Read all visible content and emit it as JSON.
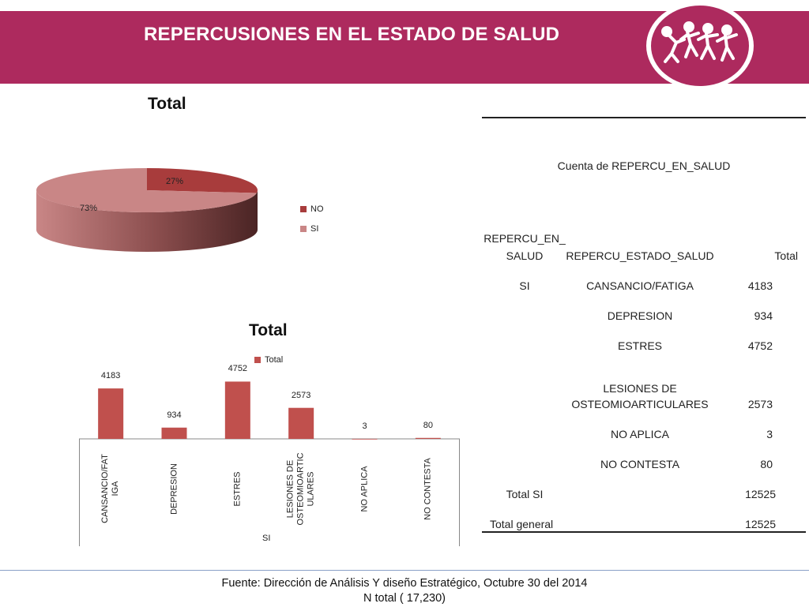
{
  "header": {
    "title": "REPERCUSIONES EN EL ESTADO DE SALUD",
    "banner_color": "#ad2a5e"
  },
  "logo": {
    "icon": "running-people-logo-icon"
  },
  "chart_data": [
    {
      "type": "pie",
      "title": "Total",
      "labels": [
        "NO",
        "SI"
      ],
      "values": [
        27,
        73
      ],
      "value_labels": [
        "27%",
        "73%"
      ],
      "colors": [
        "#a83c3c",
        "#c98686"
      ],
      "legend": "right",
      "three_d": true
    },
    {
      "type": "bar",
      "title": "Total",
      "categories": [
        "CANSANCIO/FATIGA",
        "DEPRESION",
        "ESTRES",
        "LESIONES DE OSTEOMIOARTICULARES",
        "NO APLICA",
        "NO CONTESTA"
      ],
      "category_tick_labels": [
        "CANSANCIO/FAT IGA",
        "DEPRESION",
        "ESTRES",
        "LESIONES DE OSTEOMIOARTIC ULARES",
        "NO APLICA",
        "NO CONTESTA"
      ],
      "group_label": "SI",
      "series": [
        {
          "name": "Total",
          "values": [
            4183,
            934,
            4752,
            2573,
            3,
            80
          ],
          "color": "#c0504d"
        }
      ],
      "data_labels": [
        "4183",
        "934",
        "4752",
        "2573",
        "3",
        "80"
      ],
      "ylim": [
        0,
        5500
      ],
      "legend": "top",
      "grid": false
    }
  ],
  "pivot": {
    "heading": "Cuenta de REPERCU_EN_SALUD",
    "col1_line1": "REPERCU_EN_",
    "col1_line2": "SALUD",
    "col2": "REPERCU_ESTADO_SALUD",
    "col3": "Total",
    "group": "SI",
    "rows": [
      {
        "label": "CANSANCIO/FATIGA",
        "value": "4183"
      },
      {
        "label": "DEPRESION",
        "value": "934"
      },
      {
        "label": "ESTRES",
        "value": "4752"
      },
      {
        "label_line1": "LESIONES DE",
        "label_line2": "OSTEOMIOARTICULARES",
        "value": "2573"
      },
      {
        "label": "NO APLICA",
        "value": "3"
      },
      {
        "label": "NO CONTESTA",
        "value": "80"
      }
    ],
    "subtotal_label": "Total SI",
    "subtotal_value": "12525",
    "grand_label": "Total general",
    "grand_value": "12525"
  },
  "footer": {
    "line1": "Fuente: Dirección de Análisis Y diseño Estratégico, Octubre 30 del 2014",
    "line2": "N total ( 17,230)"
  }
}
